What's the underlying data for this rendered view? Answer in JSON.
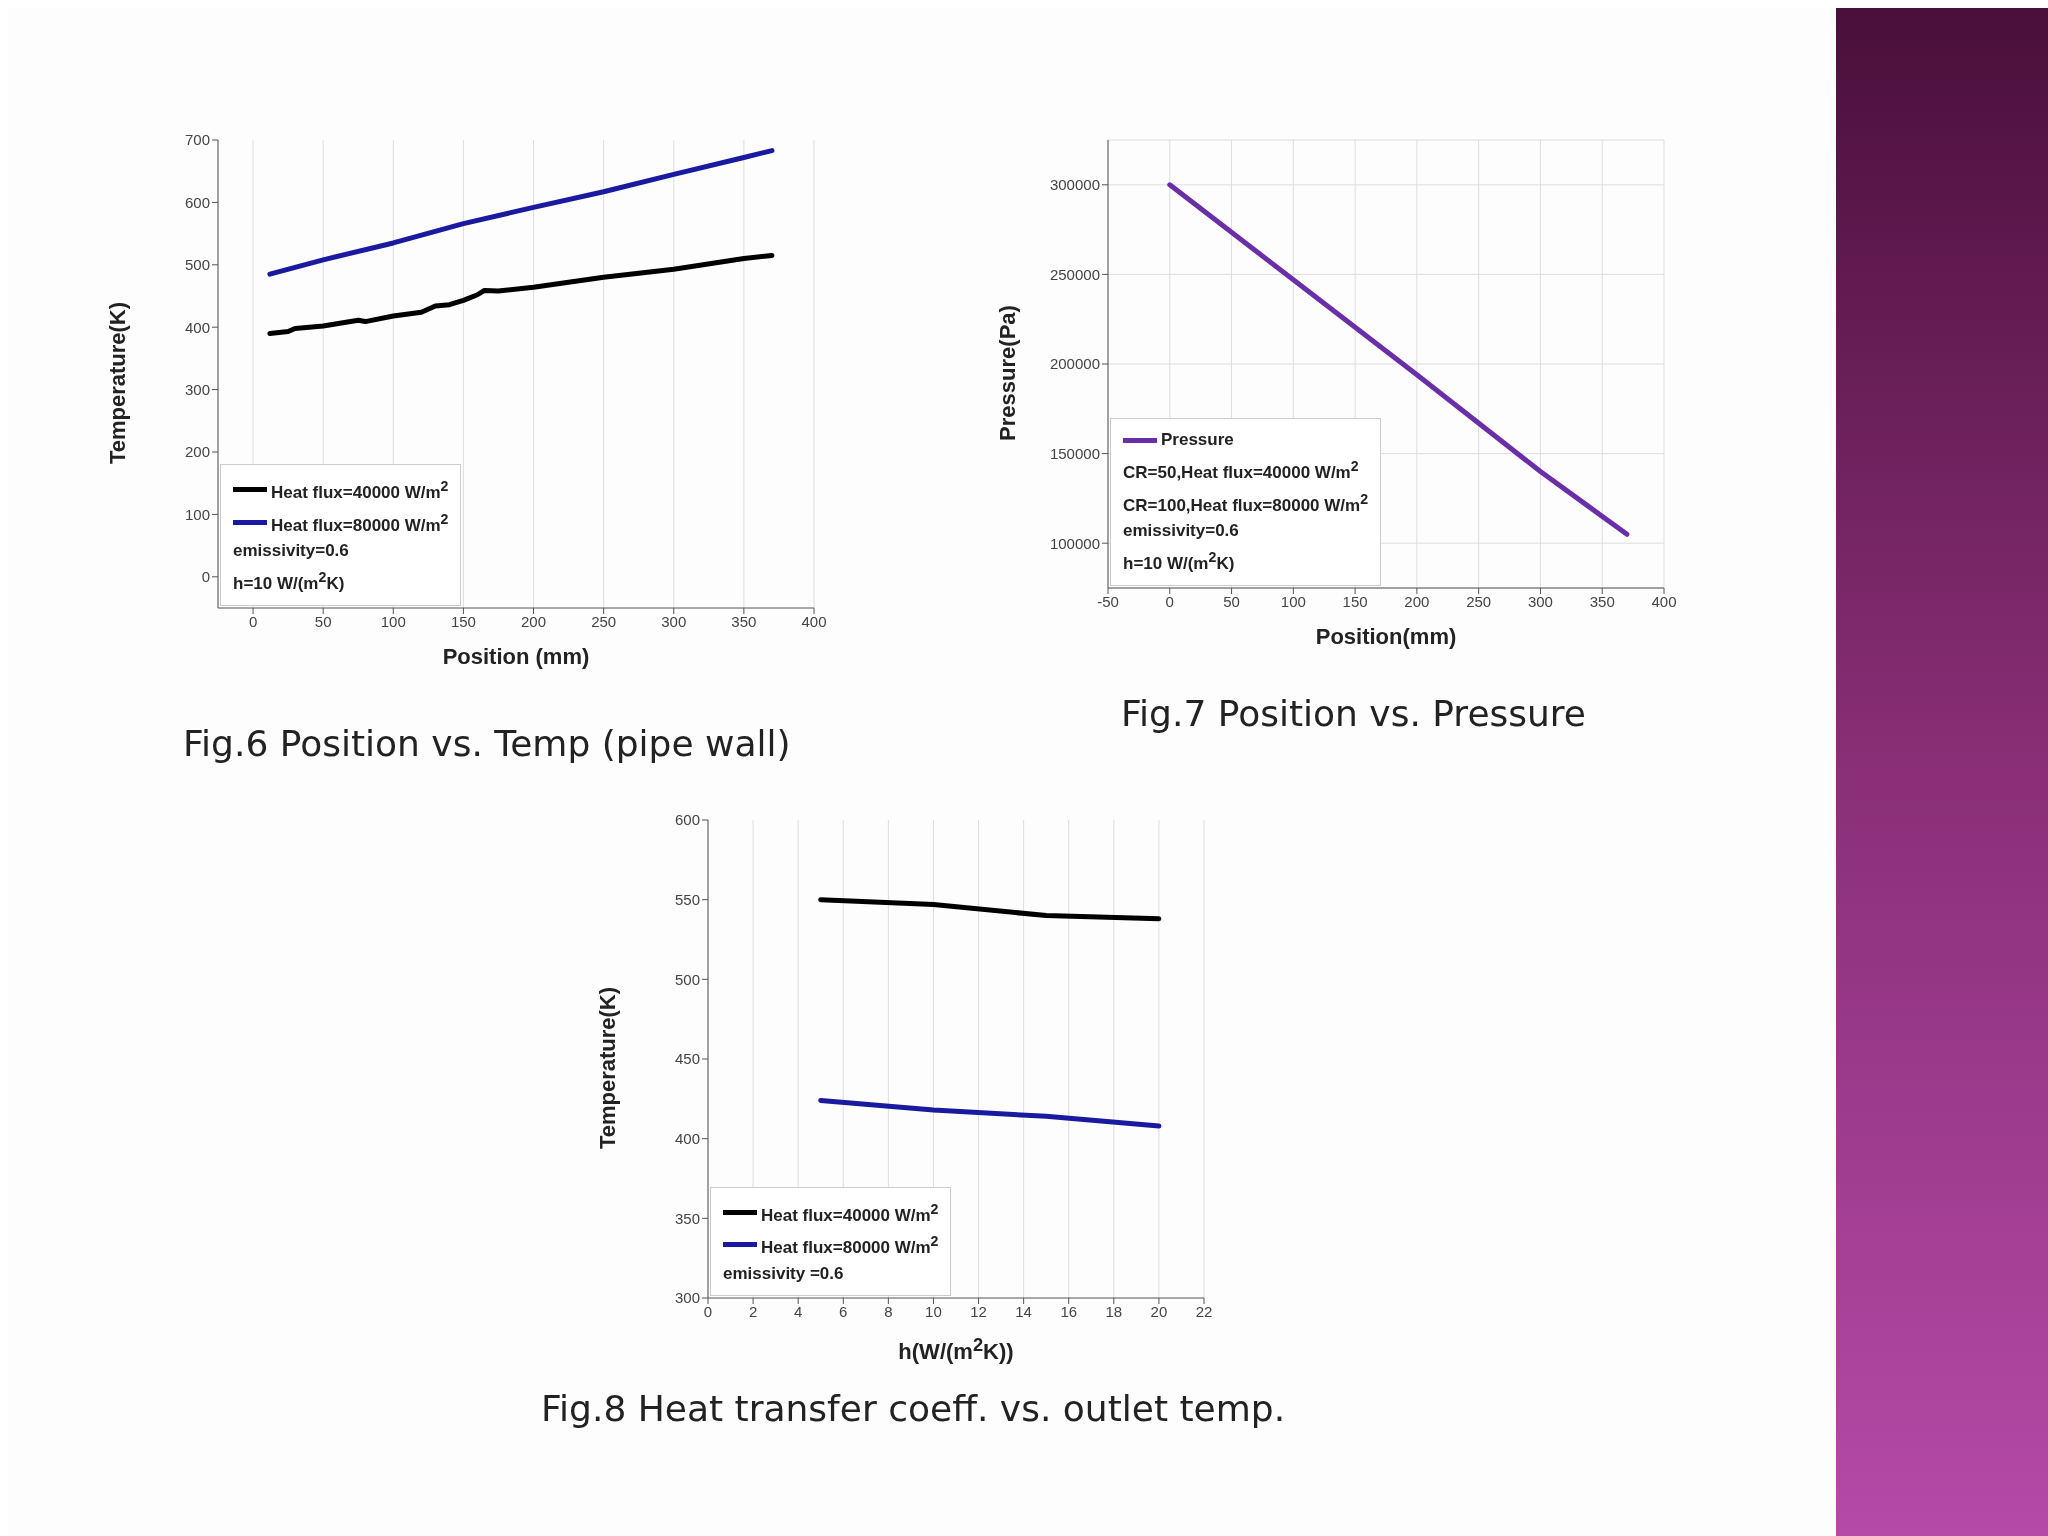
{
  "chart_data": [
    {
      "type": "line",
      "title": "Fig.6 Position vs. Temp (pipe wall)",
      "xlabel": "Position (mm)",
      "ylabel": "Temperature(K)",
      "annotations": [
        "emissivity=0.6",
        "h=10 W/(m$^{2}$K)"
      ],
      "xlim": [
        -25,
        400
      ],
      "xticks": [
        0,
        50,
        100,
        150,
        200,
        250,
        300,
        350,
        400
      ],
      "ylim": [
        -50,
        700
      ],
      "yticks": [
        0,
        100,
        200,
        300,
        400,
        500,
        600,
        700
      ],
      "grid": "x",
      "legend": "bottom left",
      "series": [
        {
          "name": "Heat flux=40000 W/m$^{2}$",
          "color": "#000000",
          "x": [
            12,
            25,
            30,
            50,
            75,
            80,
            100,
            120,
            130,
            140,
            150,
            160,
            165,
            175,
            200,
            250,
            300,
            350,
            370
          ],
          "values": [
            390,
            393,
            398,
            402,
            411,
            409,
            418,
            424,
            434,
            436,
            443,
            452,
            459,
            458,
            464,
            480,
            493,
            510,
            515
          ]
        },
        {
          "name": "Heat flux=80000 W/m$^{2}$",
          "color": "#1a1aa0",
          "x": [
            12,
            50,
            100,
            150,
            200,
            250,
            300,
            350,
            370
          ],
          "values": [
            485,
            508,
            535,
            566,
            592,
            617,
            645,
            672,
            683
          ]
        }
      ]
    },
    {
      "type": "line",
      "title": "Fig.7 Position vs. Pressure",
      "xlabel": "Position(mm)",
      "ylabel": "Pressure(Pa)",
      "annotations": [
        "CR=50,Heat flux=40000 W/m$^{2}$",
        "CR=100,Heat flux=80000 W/m$^{2}$",
        "emissivity=0.6",
        "h=10 W/(m$^{2}$K)"
      ],
      "xlim": [
        -50,
        400
      ],
      "xticks": [
        -50,
        0,
        50,
        100,
        150,
        200,
        250,
        300,
        350,
        400
      ],
      "ylim": [
        75000,
        325000
      ],
      "yticks": [
        100000,
        150000,
        200000,
        250000,
        300000
      ],
      "grid": true,
      "legend": "bottom left",
      "series": [
        {
          "name": "Pressure",
          "color": "#6a2fa8",
          "x": [
            0,
            100,
            200,
            300,
            340,
            370
          ],
          "values": [
            300000,
            247000,
            194000,
            140000,
            120000,
            105000
          ]
        }
      ]
    },
    {
      "type": "line",
      "title": "Fig.8 Heat transfer coeff. vs. outlet temp.",
      "xlabel": "h(W/(m$^{2}$K))",
      "ylabel": "Temperature(K)",
      "annotations": [
        "emissivity =0.6"
      ],
      "xlim": [
        0,
        22
      ],
      "xticks": [
        0,
        2,
        4,
        6,
        8,
        10,
        12,
        14,
        16,
        18,
        20,
        22
      ],
      "ylim": [
        300,
        600
      ],
      "yticks": [
        300,
        350,
        400,
        450,
        500,
        550,
        600
      ],
      "grid": "x",
      "legend": "bottom left",
      "series": [
        {
          "name": "Heat flux=40000 W/m$^{2}$",
          "color": "#000000",
          "x": [
            5,
            10,
            15,
            20
          ],
          "values": [
            550,
            547,
            540,
            538
          ]
        },
        {
          "name": "Heat flux=80000 W/m$^{2}$",
          "color": "#1a1aa0",
          "x": [
            5,
            10,
            15,
            20
          ],
          "values": [
            424,
            418,
            414,
            408
          ]
        }
      ]
    }
  ]
}
